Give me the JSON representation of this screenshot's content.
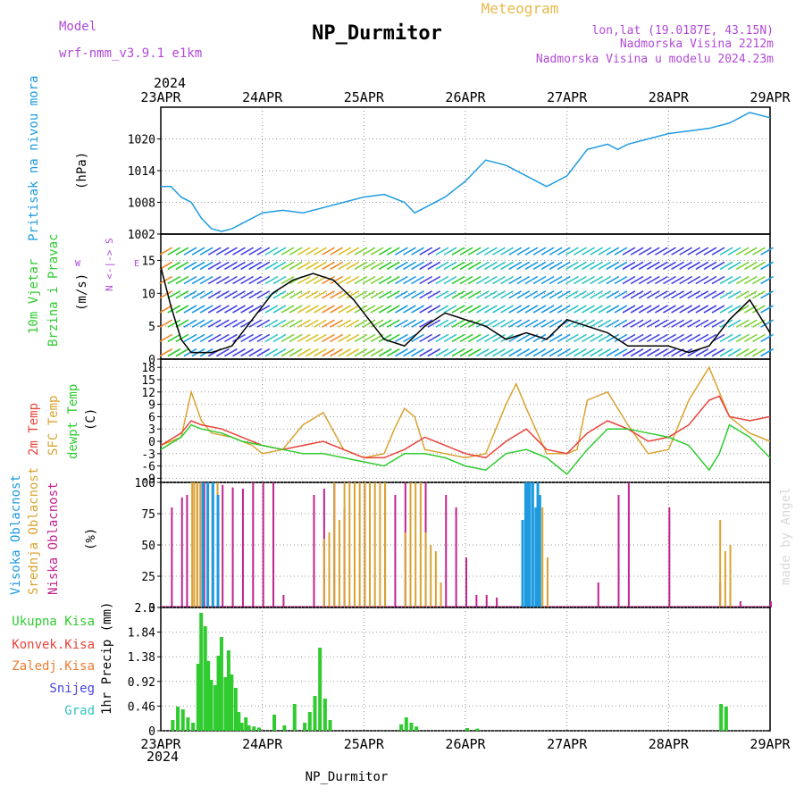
{
  "header": {
    "model_label": "Model",
    "model_name": "wrf-nmm_v3.9.1  e1km",
    "title": "NP_Durmitor",
    "meteogram": "Meteogram",
    "lonlat": "lon,lat (19.0187E, 43.15N)",
    "elevation": "Nadmorska Visina 2212m",
    "model_elevation": "Nadmorska Visina u modelu 2024.23m",
    "year": "2024",
    "footer_title": "NP_Durmitor",
    "credit": "made by Angel"
  },
  "colors": {
    "pressure": "#1e9be0",
    "temp2m": "#e8433a",
    "sfc": "#d9a331",
    "dewpt": "#2fcb2f",
    "high_cloud": "#1e9be0",
    "mid_cloud": "#d9a331",
    "low_cloud": "#c0248f",
    "total_precip": "#2fcb2f",
    "convective": "#e8433a",
    "frozen": "#f07b2f",
    "snow": "#4646e0",
    "hail": "#33c4c4",
    "wind_label": "#2fcb2f",
    "compass": "#b04ad6"
  },
  "chart_data": [
    {
      "type": "line",
      "panel": "pressure",
      "x_ticks": [
        "23APR",
        "24APR",
        "25APR",
        "26APR",
        "27APR",
        "28APR",
        "29APR"
      ],
      "ylabel_name": "Pritisak na nivou mora",
      "ylabel_unit": "(hPa)",
      "ylim": [
        1002,
        1026
      ],
      "yticks": [
        "1002",
        "1008",
        "1014",
        "1020"
      ],
      "series": [
        {
          "name": "",
          "x": [
            0,
            0.1,
            0.2,
            0.3,
            0.4,
            0.5,
            0.6,
            0.7,
            0.8,
            1.0,
            1.2,
            1.4,
            1.6,
            1.8,
            2.0,
            2.2,
            2.4,
            2.5,
            2.6,
            2.8,
            3.0,
            3.2,
            3.4,
            3.6,
            3.8,
            4.0,
            4.2,
            4.4,
            4.5,
            4.6,
            4.8,
            5.0,
            5.2,
            5.4,
            5.6,
            5.8,
            6.0
          ],
          "values": [
            1011,
            1011,
            1009,
            1008,
            1005,
            1003,
            1002.5,
            1003,
            1004,
            1006,
            1006.5,
            1006,
            1007,
            1008,
            1009,
            1009.5,
            1008,
            1006,
            1007,
            1009,
            1012,
            1016,
            1015,
            1013,
            1011,
            1013,
            1018,
            1019,
            1018,
            1019,
            1020,
            1021,
            1021.5,
            1022,
            1023,
            1025,
            1024
          ]
        }
      ]
    },
    {
      "type": "line",
      "panel": "wind",
      "ylabel_name_1": "10m Vjetar",
      "ylabel_name_2": "Brzina i Pravac",
      "ylabel_unit": "(m/s)",
      "compass": "N <-|-> S",
      "compass_w": "W",
      "compass_e": "E",
      "ylim": [
        0,
        19
      ],
      "yticks": [
        "0",
        "5",
        "10",
        "15"
      ],
      "series": [
        {
          "name": "",
          "x": [
            0,
            0.1,
            0.2,
            0.3,
            0.5,
            0.7,
            0.9,
            1.1,
            1.3,
            1.5,
            1.7,
            1.9,
            2.0,
            2.2,
            2.4,
            2.6,
            2.8,
            3.0,
            3.2,
            3.4,
            3.6,
            3.8,
            4.0,
            4.2,
            4.4,
            4.6,
            4.8,
            5.0,
            5.2,
            5.4,
            5.6,
            5.8,
            6.0
          ],
          "values": [
            14,
            8,
            3,
            1,
            1,
            2,
            6,
            10,
            12,
            13,
            12,
            9,
            7,
            3,
            2,
            5,
            7,
            6,
            5,
            3,
            4,
            3,
            6,
            5,
            4,
            2,
            2,
            2,
            1,
            2,
            6,
            9,
            4
          ]
        }
      ]
    },
    {
      "type": "line",
      "panel": "temperature",
      "ylabel_name_1": "2m Temp",
      "ylabel_name_2": "SFC Temp",
      "ylabel_name_3": "dewpt Temp",
      "ylabel_unit": "(C)",
      "ylim": [
        -10,
        20
      ],
      "yticks": [
        "-9",
        "-6",
        "-3",
        "0",
        "3",
        "6",
        "9",
        "12",
        "15",
        "18"
      ],
      "series": [
        {
          "name": "",
          "key": "sfc",
          "x": [
            0,
            0.2,
            0.3,
            0.4,
            0.5,
            0.7,
            0.9,
            1.0,
            1.2,
            1.4,
            1.6,
            1.8,
            2.0,
            2.2,
            2.3,
            2.4,
            2.5,
            2.6,
            2.8,
            3.0,
            3.2,
            3.4,
            3.5,
            3.6,
            3.8,
            4.0,
            4.1,
            4.2,
            4.4,
            4.6,
            4.8,
            5.0,
            5.2,
            5.4,
            5.5,
            5.6,
            5.8,
            6.0
          ],
          "values": [
            -1,
            1,
            12,
            5,
            2,
            1,
            -1,
            -3,
            -2,
            4,
            7,
            -2,
            -4,
            -3,
            3,
            8,
            6,
            -2,
            -3,
            -4,
            -3,
            9,
            14,
            8,
            -3,
            -3,
            -2,
            10,
            12,
            4,
            -3,
            -2,
            10,
            18,
            12,
            6,
            2,
            0
          ]
        },
        {
          "name": "",
          "key": "temp2m",
          "x": [
            0,
            0.2,
            0.3,
            0.4,
            0.6,
            0.8,
            1.0,
            1.2,
            1.4,
            1.6,
            1.8,
            2.0,
            2.2,
            2.4,
            2.6,
            2.8,
            3.0,
            3.2,
            3.4,
            3.6,
            3.8,
            4.0,
            4.2,
            4.4,
            4.6,
            4.8,
            5.0,
            5.2,
            5.4,
            5.5,
            5.6,
            5.8,
            6.0
          ],
          "values": [
            -1,
            2,
            5,
            4,
            3,
            1,
            -1,
            -2,
            -1,
            0,
            -2,
            -4,
            -4,
            -2,
            1,
            -1,
            -3,
            -4,
            0,
            3,
            -2,
            -3,
            2,
            5,
            3,
            0,
            1,
            4,
            10,
            11,
            6,
            5,
            6
          ]
        },
        {
          "name": "",
          "key": "dewpt",
          "x": [
            0,
            0.2,
            0.3,
            0.4,
            0.6,
            0.8,
            1.0,
            1.2,
            1.4,
            1.6,
            1.8,
            2.0,
            2.2,
            2.4,
            2.6,
            2.8,
            3.0,
            3.2,
            3.4,
            3.6,
            3.8,
            4.0,
            4.2,
            4.4,
            4.6,
            4.8,
            5.0,
            5.2,
            5.4,
            5.5,
            5.6,
            5.8,
            6.0
          ],
          "values": [
            -2,
            1,
            4,
            3,
            2,
            0,
            -1,
            -2,
            -3,
            -3,
            -4,
            -5,
            -6,
            -3,
            -3,
            -4,
            -6,
            -7,
            -3,
            -2,
            -4,
            -8,
            -2,
            3,
            3,
            2,
            1,
            -1,
            -7,
            -3,
            4,
            1,
            -4
          ]
        }
      ]
    },
    {
      "type": "bar",
      "panel": "cloud",
      "ylabel_name_1": "Visoka Oblacnost",
      "ylabel_name_2": "Srednja Oblacnost",
      "ylabel_name_3": "Niska Oblacnost",
      "ylabel_unit": "(%)",
      "ylim": [
        0,
        100
      ],
      "yticks": [
        "0",
        "25",
        "50",
        "75",
        "100"
      ],
      "series": [
        {
          "name": "",
          "key": "low_cloud",
          "x": [
            0.1,
            0.2,
            0.25,
            0.35,
            0.42,
            0.5,
            0.55,
            0.6,
            0.7,
            0.8,
            0.9,
            1.0,
            1.1,
            1.2,
            1.5,
            1.6,
            1.7,
            1.8,
            2.0,
            2.2,
            2.3,
            2.4,
            2.6,
            2.8,
            2.9,
            3.0,
            3.1,
            3.2,
            3.3,
            4.3,
            4.5,
            4.6,
            5.0,
            5.5,
            5.6,
            5.7,
            6.0
          ],
          "values": [
            80,
            88,
            90,
            100,
            100,
            100,
            100,
            98,
            96,
            95,
            100,
            100,
            100,
            10,
            90,
            95,
            100,
            80,
            100,
            95,
            90,
            100,
            100,
            90,
            80,
            40,
            10,
            10,
            8,
            20,
            90,
            100,
            80,
            20,
            15,
            5,
            5
          ]
        },
        {
          "name": "",
          "key": "mid_cloud",
          "x": [
            0.3,
            0.32,
            0.35,
            0.38,
            0.45,
            0.5,
            0.55,
            1.6,
            1.65,
            1.7,
            1.75,
            1.8,
            1.85,
            1.9,
            1.95,
            2.0,
            2.05,
            2.1,
            2.15,
            2.2,
            2.4,
            2.45,
            2.5,
            2.55,
            2.6,
            2.65,
            2.7,
            2.75,
            3.6,
            3.7,
            3.75,
            3.8,
            5.5,
            5.55,
            5.6
          ],
          "values": [
            100,
            100,
            100,
            100,
            100,
            100,
            100,
            55,
            60,
            100,
            70,
            100,
            100,
            100,
            100,
            100,
            100,
            100,
            100,
            100,
            60,
            100,
            100,
            100,
            60,
            50,
            45,
            20,
            100,
            90,
            80,
            40,
            70,
            45,
            50
          ]
        },
        {
          "name": "",
          "key": "high_cloud",
          "x": [
            0.4,
            0.45,
            0.5,
            0.55,
            3.55,
            3.58,
            3.6,
            3.62,
            3.65,
            3.68,
            3.7,
            3.72
          ],
          "values": [
            100,
            100,
            100,
            90,
            70,
            100,
            100,
            100,
            100,
            80,
            100,
            90
          ]
        }
      ]
    },
    {
      "type": "bar",
      "panel": "precipitation",
      "ylabel_name": "1hr Precip (mm)",
      "legend": [
        "Ukupna Kisa",
        "Konvek.Kisa",
        "Zaledj.Kisa",
        "Snijeg",
        "Grad"
      ],
      "ylim": [
        0,
        2.3
      ],
      "yticks": [
        "0",
        "0.46",
        "0.92",
        "1.38",
        "1.84",
        "2.3"
      ],
      "series": [
        {
          "name": "Ukupna Kisa",
          "key": "total_precip",
          "x": [
            0.1,
            0.15,
            0.2,
            0.25,
            0.3,
            0.35,
            0.38,
            0.42,
            0.45,
            0.48,
            0.52,
            0.55,
            0.58,
            0.62,
            0.65,
            0.68,
            0.72,
            0.75,
            0.78,
            0.82,
            0.85,
            0.9,
            0.95,
            1.1,
            1.2,
            1.3,
            1.4,
            1.45,
            1.5,
            1.55,
            1.6,
            1.65,
            2.35,
            2.4,
            2.45,
            2.5,
            3.0,
            3.1,
            5.5,
            5.55
          ],
          "values": [
            0.2,
            0.45,
            0.4,
            0.25,
            0.15,
            1.25,
            2.2,
            1.95,
            1.3,
            0.95,
            0.85,
            1.4,
            1.75,
            1.0,
            1.5,
            1.05,
            0.8,
            0.35,
            0.15,
            0.25,
            0.1,
            0.08,
            0.06,
            0.3,
            0.1,
            0.5,
            0.15,
            0.35,
            0.65,
            1.55,
            0.6,
            0.2,
            0.12,
            0.25,
            0.15,
            0.08,
            0.05,
            0.04,
            0.5,
            0.45
          ]
        }
      ]
    }
  ],
  "x_ticks_top": [
    "23APR",
    "24APR",
    "25APR",
    "26APR",
    "27APR",
    "28APR",
    "29APR"
  ],
  "x_ticks_bottom": [
    "23APR",
    "24APR",
    "25APR",
    "26APR",
    "27APR",
    "28APR",
    "29APR"
  ]
}
